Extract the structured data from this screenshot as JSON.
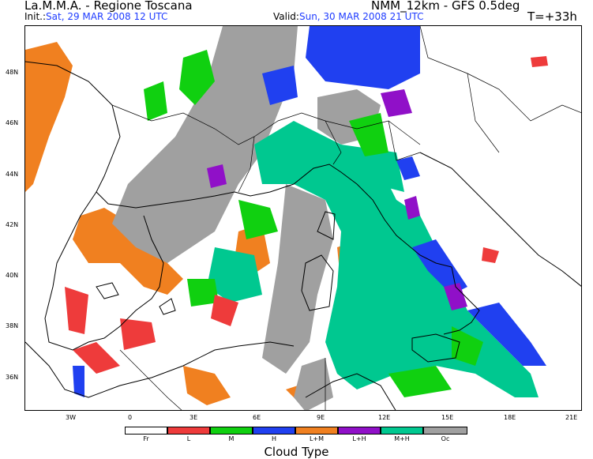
{
  "header": {
    "title": "La.M.M.A. - Regione Toscana",
    "model": "NMM_12km - GFS 0.5deg",
    "init_label": "Init.:",
    "init_value": "Sat, 29 MAR 2008  12 UTC",
    "valid_label": "Valid:",
    "valid_value": "Sun, 30 MAR 2008  21 UTC",
    "lead_time": "T=+33h"
  },
  "axes": {
    "lat_labels": [
      "48N",
      "46N",
      "44N",
      "42N",
      "40N",
      "38N",
      "36N"
    ],
    "lon_labels": [
      "3W",
      "0",
      "3E",
      "6E",
      "9E",
      "12E",
      "15E",
      "18E",
      "21E"
    ]
  },
  "colors": {
    "Fr": "#ffffff",
    "L": "#ee3b3b",
    "M": "#10d010",
    "H": "#2040f0",
    "L+M": "#f08020",
    "L+H": "#9010c8",
    "M+H": "#00c890",
    "Oc": "#a0a0a0"
  },
  "legend": {
    "title": "Cloud Type",
    "items": [
      "Fr",
      "L",
      "M",
      "H",
      "L+M",
      "L+H",
      "M+H",
      "Oc"
    ]
  }
}
